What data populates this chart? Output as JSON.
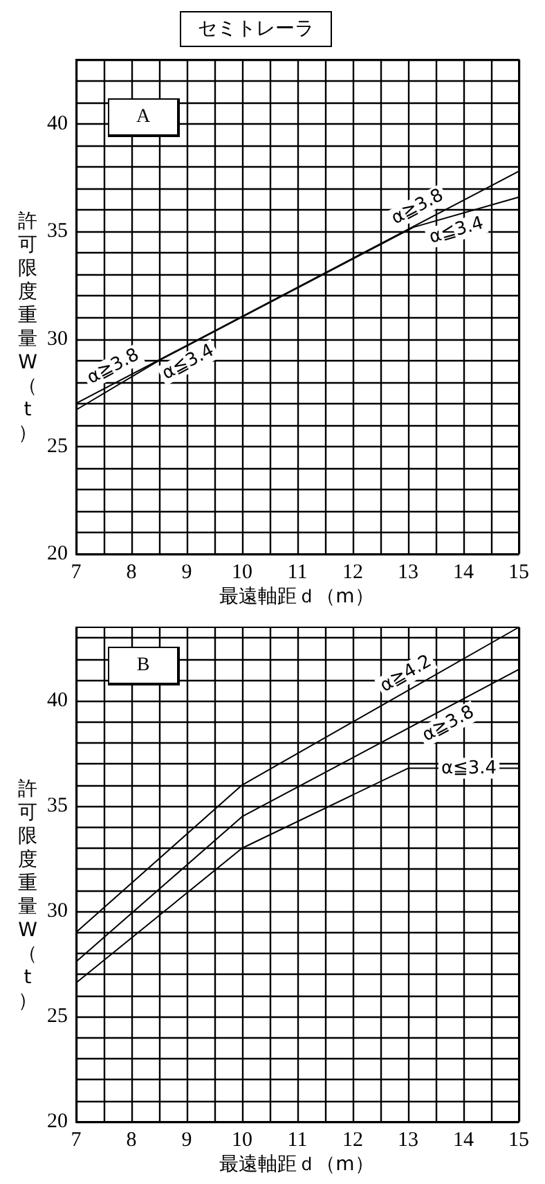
{
  "chart_data": [
    {
      "type": "line",
      "title": "セミトレーラ",
      "subtitle": "A",
      "xlabel": "最遠軸距ｄ（m）",
      "ylabel": "許可限度重量W（t）",
      "series": [
        {
          "name": "α≧3.8",
          "color": "#000000",
          "x": [
            7,
            15
          ],
          "values": [
            27.0,
            37.8
          ]
        },
        {
          "name": "α≦3.4",
          "color": "#000000",
          "x": [
            7,
            8.5,
            13.1,
            15
          ],
          "values": [
            26.7,
            29.0,
            35.2,
            36.6
          ]
        }
      ],
      "xlim": [
        7,
        15
      ],
      "xticks": [
        7,
        {
          "value": 7.5,
          "label": null
        },
        8,
        {
          "value": 8.5,
          "label": null
        },
        9,
        {
          "value": 9.5,
          "label": null
        },
        10,
        {
          "value": 10.5,
          "label": null
        },
        11,
        {
          "value": 11.5,
          "label": null
        },
        12,
        {
          "value": 12.5,
          "label": null
        },
        13,
        {
          "value": 13.5,
          "label": null
        },
        14,
        {
          "value": 14.5,
          "label": null
        },
        15
      ],
      "ylim": [
        20,
        43
      ],
      "yticks": [
        20,
        {
          "value": 21,
          "label": null
        },
        {
          "value": 22,
          "label": null
        },
        {
          "value": 23,
          "label": null
        },
        {
          "value": 24,
          "label": null
        },
        25,
        {
          "value": 26,
          "label": null
        },
        {
          "value": 27,
          "label": null
        },
        {
          "value": 28,
          "label": null
        },
        {
          "value": 29,
          "label": null
        },
        30,
        {
          "value": 31,
          "label": null
        },
        {
          "value": 32,
          "label": null
        },
        {
          "value": 33,
          "label": null
        },
        {
          "value": 34,
          "label": null
        },
        35,
        {
          "value": 36,
          "label": null
        },
        {
          "value": 37,
          "label": null
        },
        {
          "value": 38,
          "label": null
        },
        {
          "value": 39,
          "label": null
        },
        40,
        {
          "value": 41,
          "label": null
        },
        {
          "value": 42,
          "label": null
        },
        {
          "value": 43,
          "label": null
        }
      ],
      "grid": true,
      "marker": "none",
      "line_style": "solid",
      "legend": false
    },
    {
      "type": "line",
      "title": "B",
      "xlabel": "最遠軸距ｄ（m）",
      "ylabel": "許可限度重量W（t）",
      "series": [
        {
          "name": "α≧4.2",
          "color": "#000000",
          "x": [
            7,
            10,
            15
          ],
          "values": [
            29.0,
            36.0,
            43.5
          ]
        },
        {
          "name": "α≧3.8",
          "color": "#000000",
          "x": [
            7,
            10,
            15
          ],
          "values": [
            27.6,
            34.5,
            41.5
          ]
        },
        {
          "name": "α≦3.4",
          "color": "#000000",
          "x": [
            7,
            10,
            13,
            15
          ],
          "values": [
            26.6,
            33.0,
            36.8,
            36.8
          ]
        }
      ],
      "xlim": [
        7,
        15
      ],
      "xticks": [
        7,
        {
          "value": 7.5,
          "label": null
        },
        8,
        {
          "value": 8.5,
          "label": null
        },
        9,
        {
          "value": 9.5,
          "label": null
        },
        10,
        {
          "value": 10.5,
          "label": null
        },
        11,
        {
          "value": 11.5,
          "label": null
        },
        12,
        {
          "value": 12.5,
          "label": null
        },
        13,
        {
          "value": 13.5,
          "label": null
        },
        14,
        {
          "value": 14.5,
          "label": null
        },
        15
      ],
      "ylim": [
        20,
        43.5
      ],
      "yticks": [
        20,
        {
          "value": 21,
          "label": null
        },
        {
          "value": 22,
          "label": null
        },
        {
          "value": 23,
          "label": null
        },
        {
          "value": 24,
          "label": null
        },
        25,
        {
          "value": 26,
          "label": null
        },
        {
          "value": 27,
          "label": null
        },
        {
          "value": 28,
          "label": null
        },
        {
          "value": 29,
          "label": null
        },
        30,
        {
          "value": 31,
          "label": null
        },
        {
          "value": 32,
          "label": null
        },
        {
          "value": 33,
          "label": null
        },
        {
          "value": 34,
          "label": null
        },
        35,
        {
          "value": 36,
          "label": null
        },
        {
          "value": 37,
          "label": null
        },
        {
          "value": 38,
          "label": null
        },
        {
          "value": 39,
          "label": null
        },
        40,
        {
          "value": 41,
          "label": null
        },
        {
          "value": 42,
          "label": null
        },
        {
          "value": 43,
          "label": null
        }
      ],
      "grid": true,
      "marker": "none",
      "line_style": "solid",
      "legend": false
    }
  ]
}
